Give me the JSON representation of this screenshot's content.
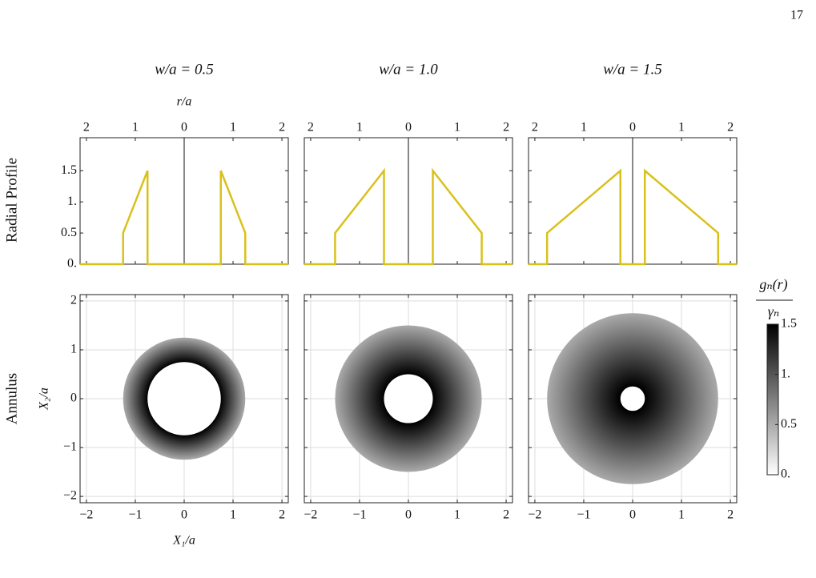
{
  "page_number": "17",
  "row_labels": [
    "Radial Profile",
    "Annulus"
  ],
  "chart_data": [
    {
      "type": "line",
      "title": "w/a = 0.5",
      "xlabel": "r/a",
      "color": "#d9c11c",
      "xlim": [
        -2.13,
        2.13
      ],
      "ylim": [
        0,
        2.03
      ],
      "xticks": [
        {
          "value": -2,
          "label": "2"
        },
        {
          "value": -1,
          "label": "1"
        },
        0,
        1,
        2
      ],
      "yticks": [
        {
          "value": 0,
          "label": "0."
        },
        0.5,
        {
          "value": 1,
          "label": "1."
        },
        1.5
      ],
      "x": [
        -2.13,
        -1.25,
        -1.25,
        -0.75,
        -0.75,
        0.75,
        0.75,
        1.25,
        1.25,
        2.13
      ],
      "values": [
        0,
        0,
        0.5,
        1.5,
        0,
        0,
        1.5,
        0.5,
        0,
        0
      ]
    },
    {
      "type": "line",
      "title": "w/a = 1.0",
      "color": "#d9c11c",
      "xlim": [
        -2.13,
        2.13
      ],
      "ylim": [
        0,
        2.03
      ],
      "xticks": [
        {
          "value": -2,
          "label": "2"
        },
        {
          "value": -1,
          "label": "1"
        },
        0,
        1,
        2
      ],
      "x": [
        -2.13,
        -1.5,
        -1.5,
        -0.5,
        -0.5,
        0.5,
        0.5,
        1.5,
        1.5,
        2.13
      ],
      "values": [
        0,
        0,
        0.5,
        1.5,
        0,
        0,
        1.5,
        0.5,
        0,
        0
      ]
    },
    {
      "type": "line",
      "title": "w/a = 1.5",
      "color": "#d9c11c",
      "xlim": [
        -2.13,
        2.13
      ],
      "ylim": [
        0,
        2.03
      ],
      "xticks": [
        {
          "value": -2,
          "label": "2"
        },
        {
          "value": -1,
          "label": "1"
        },
        0,
        1,
        2
      ],
      "x": [
        -2.13,
        -1.75,
        -1.75,
        -0.25,
        -0.25,
        0.25,
        0.25,
        1.75,
        1.75,
        2.13
      ],
      "values": [
        0,
        0,
        0.5,
        1.5,
        0,
        0,
        1.5,
        0.5,
        0,
        0
      ]
    },
    {
      "type": "annulus",
      "xlabel": "X₁/a",
      "ylabel": "X₂/a",
      "grid": true,
      "xlim": [
        -2.13,
        2.13
      ],
      "ylim": [
        -2.13,
        2.13
      ],
      "xticks": [
        {
          "value": -2,
          "label": "−2"
        },
        {
          "value": -1,
          "label": "−1"
        },
        0,
        1,
        2
      ],
      "yticks": [
        {
          "value": -2,
          "label": "−2"
        },
        {
          "value": -1,
          "label": "−1"
        },
        0,
        1,
        2
      ],
      "inner_radius": 0.75,
      "outer_radius": 1.25,
      "inner_value": 1.5,
      "outer_value": 0.5
    },
    {
      "type": "annulus",
      "grid": true,
      "xlim": [
        -2.13,
        2.13
      ],
      "ylim": [
        -2.13,
        2.13
      ],
      "xticks": [
        {
          "value": -2,
          "label": "−2"
        },
        {
          "value": -1,
          "label": "−1"
        },
        0,
        1,
        2
      ],
      "inner_radius": 0.5,
      "outer_radius": 1.5,
      "inner_value": 1.5,
      "outer_value": 0.5
    },
    {
      "type": "annulus",
      "grid": true,
      "xlim": [
        -2.13,
        2.13
      ],
      "ylim": [
        -2.13,
        2.13
      ],
      "xticks": [
        {
          "value": -2,
          "label": "−2"
        },
        {
          "value": -1,
          "label": "−1"
        },
        0,
        1,
        2
      ],
      "inner_radius": 0.25,
      "outer_radius": 1.75,
      "inner_value": 1.5,
      "outer_value": 0.5
    },
    {
      "type": "colorbar",
      "label": "gₙ(r)",
      "label_denominator": "γₙ",
      "ylim": [
        0,
        1.5
      ],
      "yticks": [
        {
          "value": 0,
          "label": "0."
        },
        0.5,
        {
          "value": 1,
          "label": "1."
        },
        1.5
      ]
    }
  ]
}
